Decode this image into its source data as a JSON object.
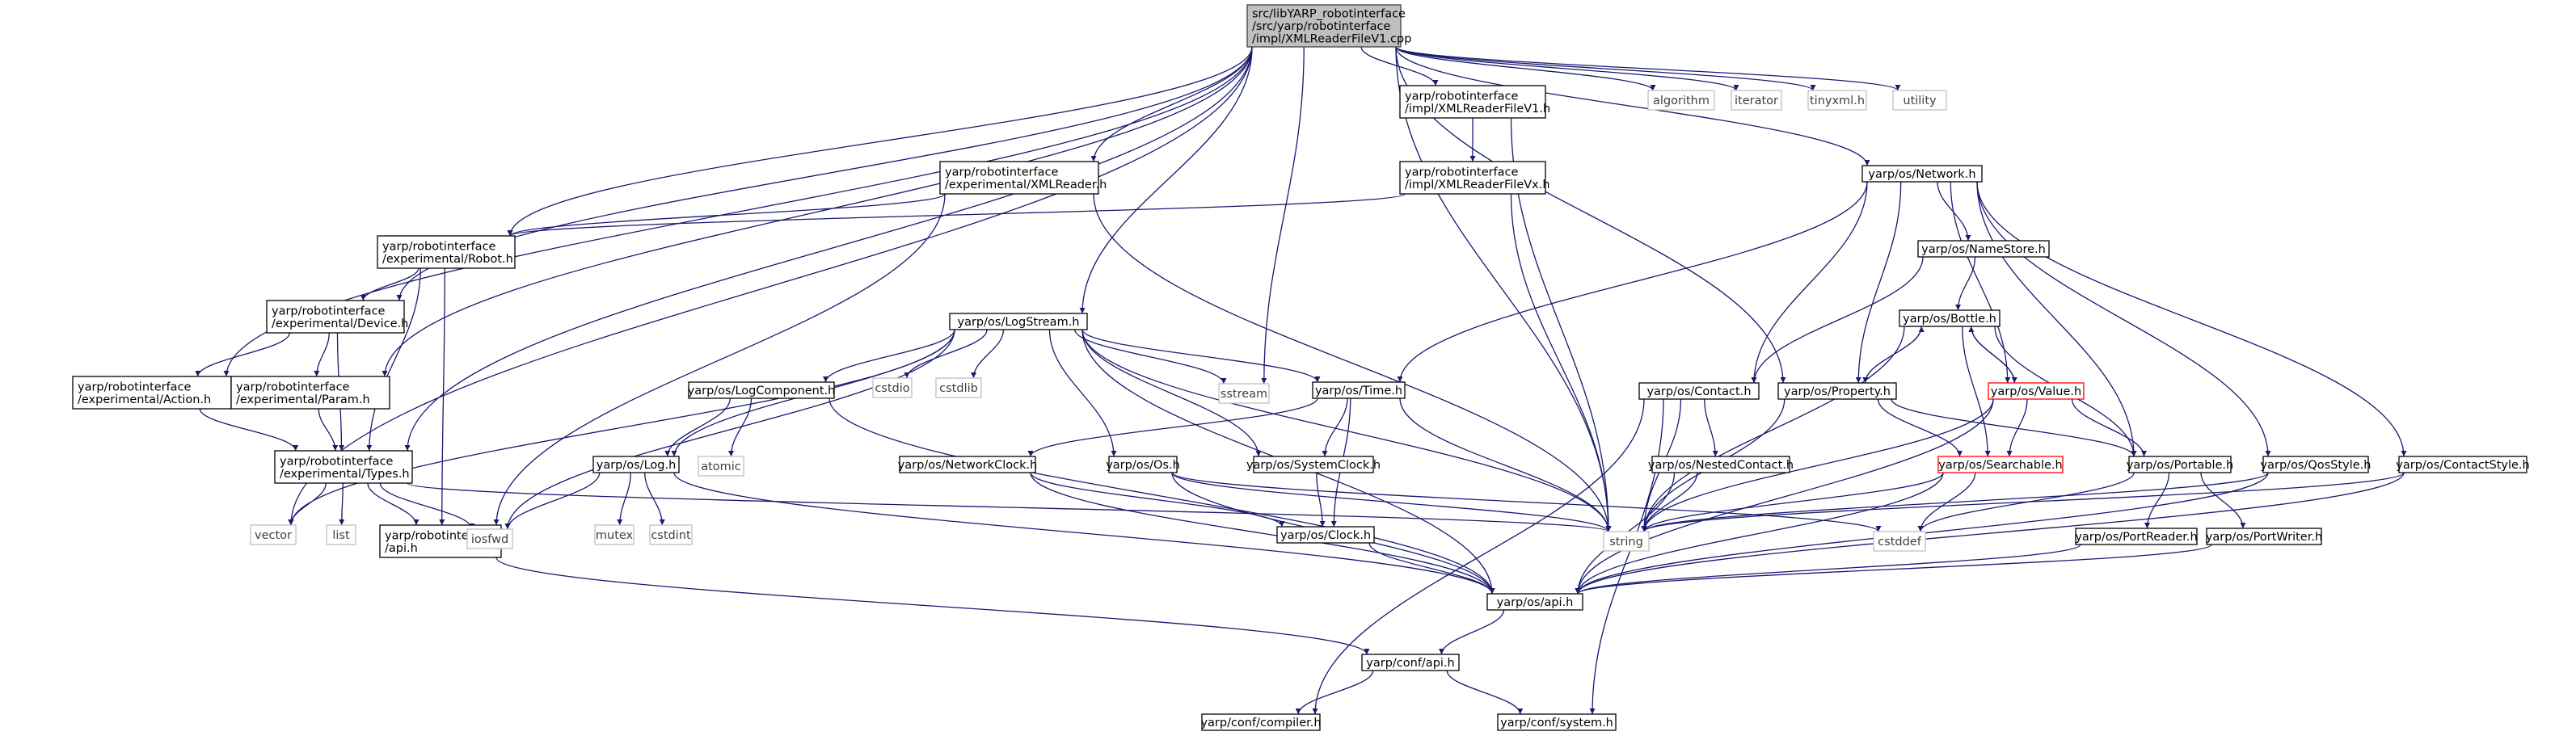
{
  "colors": {
    "edge": "#191970",
    "node_border": "#000000",
    "node_fill": "#ffffff",
    "root_fill": "#bfbfbf",
    "root_border": "#404040",
    "system_border": "#bfbfbf",
    "system_text": "#404040",
    "truncated_border": "#ff0000",
    "text": "#000000"
  },
  "nodes": [
    {
      "id": "root",
      "kind": "root",
      "lines": [
        "src/libYARP_robotinterface",
        "/src/yarp/robotinterface",
        "/impl/XMLReaderFileV1.cpp"
      ]
    },
    {
      "id": "xmlv1h",
      "kind": "header",
      "lines": [
        "yarp/robotinterface",
        "/impl/XMLReaderFileV1.h"
      ]
    },
    {
      "id": "xmlvxh",
      "kind": "header",
      "lines": [
        "yarp/robotinterface",
        "/impl/XMLReaderFileVx.h"
      ]
    },
    {
      "id": "xmlreader",
      "kind": "header",
      "lines": [
        "yarp/robotinterface",
        "/experimental/XMLReader.h"
      ]
    },
    {
      "id": "robot",
      "kind": "header",
      "lines": [
        "yarp/robotinterface",
        "/experimental/Robot.h"
      ]
    },
    {
      "id": "device",
      "kind": "header",
      "lines": [
        "yarp/robotinterface",
        "/experimental/Device.h"
      ]
    },
    {
      "id": "action",
      "kind": "header",
      "lines": [
        "yarp/robotinterface",
        "/experimental/Action.h"
      ]
    },
    {
      "id": "param",
      "kind": "header",
      "lines": [
        "yarp/robotinterface",
        "/experimental/Param.h"
      ]
    },
    {
      "id": "types",
      "kind": "header",
      "lines": [
        "yarp/robotinterface",
        "/experimental/Types.h"
      ]
    },
    {
      "id": "riapi",
      "kind": "header",
      "lines": [
        "yarp/robotinterface",
        "/api.h"
      ]
    },
    {
      "id": "vector",
      "kind": "system",
      "lines": [
        "vector"
      ]
    },
    {
      "id": "list",
      "kind": "system",
      "lines": [
        "list"
      ]
    },
    {
      "id": "iosfwd",
      "kind": "system",
      "lines": [
        "iosfwd"
      ]
    },
    {
      "id": "logstream",
      "kind": "header",
      "lines": [
        "yarp/os/LogStream.h"
      ]
    },
    {
      "id": "logcomp",
      "kind": "header",
      "lines": [
        "yarp/os/LogComponent.h"
      ]
    },
    {
      "id": "atomic",
      "kind": "system",
      "lines": [
        "atomic"
      ]
    },
    {
      "id": "log",
      "kind": "header",
      "lines": [
        "yarp/os/Log.h"
      ]
    },
    {
      "id": "mutex",
      "kind": "system",
      "lines": [
        "mutex"
      ]
    },
    {
      "id": "cstdint",
      "kind": "system",
      "lines": [
        "cstdint"
      ]
    },
    {
      "id": "cstdio",
      "kind": "system",
      "lines": [
        "cstdio"
      ]
    },
    {
      "id": "cstdlib",
      "kind": "system",
      "lines": [
        "cstdlib"
      ]
    },
    {
      "id": "sstream",
      "kind": "system",
      "lines": [
        "sstream"
      ]
    },
    {
      "id": "time",
      "kind": "header",
      "lines": [
        "yarp/os/Time.h"
      ]
    },
    {
      "id": "netclock",
      "kind": "header",
      "lines": [
        "yarp/os/NetworkClock.h"
      ]
    },
    {
      "id": "os",
      "kind": "header",
      "lines": [
        "yarp/os/Os.h"
      ]
    },
    {
      "id": "sysclock",
      "kind": "header",
      "lines": [
        "yarp/os/SystemClock.h"
      ]
    },
    {
      "id": "clock",
      "kind": "header",
      "lines": [
        "yarp/os/Clock.h"
      ]
    },
    {
      "id": "osapi",
      "kind": "header",
      "lines": [
        "yarp/os/api.h"
      ]
    },
    {
      "id": "confapi",
      "kind": "header",
      "lines": [
        "yarp/conf/api.h"
      ]
    },
    {
      "id": "compiler",
      "kind": "header",
      "lines": [
        "yarp/conf/compiler.h"
      ]
    },
    {
      "id": "system",
      "kind": "header",
      "lines": [
        "yarp/conf/system.h"
      ]
    },
    {
      "id": "string",
      "kind": "system",
      "lines": [
        "string"
      ]
    },
    {
      "id": "algorithm",
      "kind": "system",
      "lines": [
        "algorithm"
      ]
    },
    {
      "id": "iterator",
      "kind": "system",
      "lines": [
        "iterator"
      ]
    },
    {
      "id": "tinyxml",
      "kind": "system",
      "lines": [
        "tinyxml.h"
      ]
    },
    {
      "id": "utility",
      "kind": "system",
      "lines": [
        "utility"
      ]
    },
    {
      "id": "network",
      "kind": "header",
      "lines": [
        "yarp/os/Network.h"
      ]
    },
    {
      "id": "namestore",
      "kind": "header",
      "lines": [
        "yarp/os/NameStore.h"
      ]
    },
    {
      "id": "bottle",
      "kind": "header",
      "lines": [
        "yarp/os/Bottle.h"
      ]
    },
    {
      "id": "value",
      "kind": "truncated",
      "lines": [
        "yarp/os/Value.h"
      ]
    },
    {
      "id": "contact",
      "kind": "header",
      "lines": [
        "yarp/os/Contact.h"
      ]
    },
    {
      "id": "property",
      "kind": "header",
      "lines": [
        "yarp/os/Property.h"
      ]
    },
    {
      "id": "nestedcontact",
      "kind": "header",
      "lines": [
        "yarp/os/NestedContact.h"
      ]
    },
    {
      "id": "searchable",
      "kind": "truncated",
      "lines": [
        "yarp/os/Searchable.h"
      ]
    },
    {
      "id": "portable",
      "kind": "header",
      "lines": [
        "yarp/os/Portable.h"
      ]
    },
    {
      "id": "portreader",
      "kind": "header",
      "lines": [
        "yarp/os/PortReader.h"
      ]
    },
    {
      "id": "portwriter",
      "kind": "header",
      "lines": [
        "yarp/os/PortWriter.h"
      ]
    },
    {
      "id": "qosstyle",
      "kind": "header",
      "lines": [
        "yarp/os/QosStyle.h"
      ]
    },
    {
      "id": "contactstyle",
      "kind": "header",
      "lines": [
        "yarp/os/ContactStyle.h"
      ]
    },
    {
      "id": "cstddef",
      "kind": "system",
      "lines": [
        "cstddef"
      ]
    }
  ],
  "edges": [
    [
      "root",
      "xmlv1h"
    ],
    [
      "root",
      "algorithm"
    ],
    [
      "root",
      "iterator"
    ],
    [
      "root",
      "tinyxml"
    ],
    [
      "root",
      "utility"
    ],
    [
      "root",
      "network"
    ],
    [
      "root",
      "xmlreader"
    ],
    [
      "root",
      "robot"
    ],
    [
      "root",
      "device"
    ],
    [
      "root",
      "action"
    ],
    [
      "root",
      "param"
    ],
    [
      "root",
      "types"
    ],
    [
      "root",
      "vector"
    ],
    [
      "root",
      "logstream"
    ],
    [
      "root",
      "sstream"
    ],
    [
      "root",
      "string"
    ],
    [
      "root",
      "property"
    ],
    [
      "xmlv1h",
      "xmlvxh"
    ],
    [
      "xmlv1h",
      "string"
    ],
    [
      "xmlvxh",
      "robot"
    ],
    [
      "xmlvxh",
      "string"
    ],
    [
      "xmlreader",
      "robot"
    ],
    [
      "xmlreader",
      "riapi"
    ],
    [
      "xmlreader",
      "string"
    ],
    [
      "robot",
      "device"
    ],
    [
      "robot",
      "types"
    ],
    [
      "robot",
      "riapi"
    ],
    [
      "device",
      "action"
    ],
    [
      "device",
      "param"
    ],
    [
      "device",
      "types"
    ],
    [
      "action",
      "types"
    ],
    [
      "param",
      "types"
    ],
    [
      "types",
      "riapi"
    ],
    [
      "types",
      "vector"
    ],
    [
      "types",
      "list"
    ],
    [
      "types",
      "iosfwd"
    ],
    [
      "types",
      "string"
    ],
    [
      "riapi",
      "confapi"
    ],
    [
      "logstream",
      "logcomp"
    ],
    [
      "logstream",
      "log"
    ],
    [
      "logstream",
      "cstdio"
    ],
    [
      "logstream",
      "cstdlib"
    ],
    [
      "logstream",
      "sstream"
    ],
    [
      "logstream",
      "time"
    ],
    [
      "logstream",
      "os"
    ],
    [
      "logstream",
      "sysclock"
    ],
    [
      "logstream",
      "osapi"
    ],
    [
      "logstream",
      "string"
    ],
    [
      "logstream",
      "vector"
    ],
    [
      "logstream",
      "iosfwd"
    ],
    [
      "logcomp",
      "log"
    ],
    [
      "logcomp",
      "atomic"
    ],
    [
      "logcomp",
      "osapi"
    ],
    [
      "log",
      "iosfwd"
    ],
    [
      "log",
      "mutex"
    ],
    [
      "log",
      "cstdint"
    ],
    [
      "log",
      "osapi"
    ],
    [
      "time",
      "netclock"
    ],
    [
      "time",
      "sysclock"
    ],
    [
      "time",
      "clock"
    ],
    [
      "time",
      "string"
    ],
    [
      "netclock",
      "clock"
    ],
    [
      "netclock",
      "osapi"
    ],
    [
      "os",
      "string"
    ],
    [
      "os",
      "cstddef"
    ],
    [
      "os",
      "osapi"
    ],
    [
      "sysclock",
      "clock"
    ],
    [
      "clock",
      "osapi"
    ],
    [
      "osapi",
      "confapi"
    ],
    [
      "confapi",
      "compiler"
    ],
    [
      "confapi",
      "system"
    ],
    [
      "network",
      "namestore"
    ],
    [
      "network",
      "contact"
    ],
    [
      "network",
      "property"
    ],
    [
      "network",
      "value"
    ],
    [
      "network",
      "portable"
    ],
    [
      "network",
      "qosstyle"
    ],
    [
      "network",
      "contactstyle"
    ],
    [
      "network",
      "time"
    ],
    [
      "namestore",
      "bottle"
    ],
    [
      "namestore",
      "contact"
    ],
    [
      "bottle",
      "property"
    ],
    [
      "bottle",
      "value"
    ],
    [
      "bottle",
      "searchable"
    ],
    [
      "bottle",
      "portable"
    ],
    [
      "bottle",
      "string"
    ],
    [
      "value",
      "bottle"
    ],
    [
      "value",
      "searchable"
    ],
    [
      "value",
      "portable"
    ],
    [
      "value",
      "string"
    ],
    [
      "value",
      "osapi"
    ],
    [
      "property",
      "bottle"
    ],
    [
      "property",
      "searchable"
    ],
    [
      "property",
      "portable"
    ],
    [
      "property",
      "string"
    ],
    [
      "contact",
      "nestedcontact"
    ],
    [
      "contact",
      "string"
    ],
    [
      "contact",
      "compiler"
    ],
    [
      "contact",
      "system"
    ],
    [
      "nestedcontact",
      "string"
    ],
    [
      "nestedcontact",
      "osapi"
    ],
    [
      "searchable",
      "string"
    ],
    [
      "searchable",
      "cstddef"
    ],
    [
      "searchable",
      "osapi"
    ],
    [
      "portable",
      "portreader"
    ],
    [
      "portable",
      "portwriter"
    ],
    [
      "portable",
      "cstddef"
    ],
    [
      "portreader",
      "osapi"
    ],
    [
      "portwriter",
      "osapi"
    ],
    [
      "qosstyle",
      "string"
    ],
    [
      "qosstyle",
      "osapi"
    ],
    [
      "contactstyle",
      "string"
    ],
    [
      "contactstyle",
      "osapi"
    ]
  ]
}
